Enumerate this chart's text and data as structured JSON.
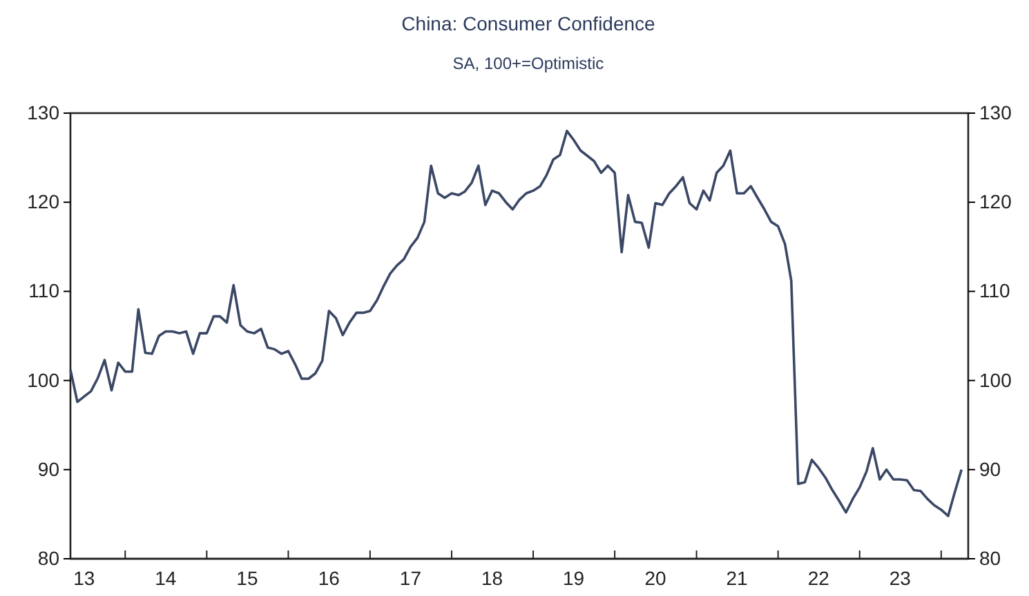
{
  "chart_data": {
    "type": "line",
    "title": "China: Consumer Confidence",
    "subtitle": "SA, 100+=Optimistic",
    "x": [
      "2013-05",
      "2013-06",
      "2013-07",
      "2013-08",
      "2013-09",
      "2013-10",
      "2013-11",
      "2013-12",
      "2014-01",
      "2014-02",
      "2014-03",
      "2014-04",
      "2014-05",
      "2014-06",
      "2014-07",
      "2014-08",
      "2014-09",
      "2014-10",
      "2014-11",
      "2014-12",
      "2015-01",
      "2015-02",
      "2015-03",
      "2015-04",
      "2015-05",
      "2015-06",
      "2015-07",
      "2015-08",
      "2015-09",
      "2015-10",
      "2015-11",
      "2015-12",
      "2016-01",
      "2016-02",
      "2016-03",
      "2016-04",
      "2016-05",
      "2016-06",
      "2016-07",
      "2016-08",
      "2016-09",
      "2016-10",
      "2016-11",
      "2016-12",
      "2017-01",
      "2017-02",
      "2017-03",
      "2017-04",
      "2017-05",
      "2017-06",
      "2017-07",
      "2017-08",
      "2017-09",
      "2017-10",
      "2017-11",
      "2017-12",
      "2018-01",
      "2018-02",
      "2018-03",
      "2018-04",
      "2018-05",
      "2018-06",
      "2018-07",
      "2018-08",
      "2018-09",
      "2018-10",
      "2018-11",
      "2018-12",
      "2019-01",
      "2019-02",
      "2019-03",
      "2019-04",
      "2019-05",
      "2019-06",
      "2019-07",
      "2019-08",
      "2019-09",
      "2019-10",
      "2019-11",
      "2019-12",
      "2020-01",
      "2020-02",
      "2020-03",
      "2020-04",
      "2020-05",
      "2020-06",
      "2020-07",
      "2020-08",
      "2020-09",
      "2020-10",
      "2020-11",
      "2020-12",
      "2021-01",
      "2021-02",
      "2021-03",
      "2021-04",
      "2021-05",
      "2021-06",
      "2021-07",
      "2021-08",
      "2021-09",
      "2021-10",
      "2021-11",
      "2021-12",
      "2022-01",
      "2022-02",
      "2022-03",
      "2022-04",
      "2022-05",
      "2022-06",
      "2022-07",
      "2022-08",
      "2022-09",
      "2022-10",
      "2022-11",
      "2022-12",
      "2023-01",
      "2023-02",
      "2023-03",
      "2023-04",
      "2023-05",
      "2023-06",
      "2023-07",
      "2023-08",
      "2023-09",
      "2023-10",
      "2023-11",
      "2023-12",
      "2024-01",
      "2024-02",
      "2024-03",
      "2024-04"
    ],
    "series": [
      {
        "color": "#3a4866",
        "values": [
          101.2,
          97.6,
          98.2,
          98.8,
          100.3,
          102.3,
          98.9,
          102,
          101,
          101,
          108,
          103.1,
          103,
          105,
          105.5,
          105.5,
          105.3,
          105.5,
          103,
          105.3,
          105.3,
          107.2,
          107.2,
          106.5,
          110.7,
          106.2,
          105.5,
          105.3,
          105.8,
          103.7,
          103.5,
          103,
          103.3,
          101.8,
          100.2,
          100.2,
          100.8,
          102.2,
          107.8,
          107,
          105.1,
          106.5,
          107.6,
          107.6,
          107.8,
          109,
          110.5,
          112,
          112.9,
          113.6,
          115,
          116,
          117.8,
          124.1,
          121,
          120.5,
          121,
          120.8,
          121.2,
          122.2,
          124.1,
          119.7,
          121.3,
          121,
          120,
          119.2,
          120.3,
          121,
          121.3,
          121.8,
          123,
          124.8,
          125.3,
          128,
          127,
          125.8,
          125.2,
          124.6,
          123.3,
          124.1,
          123.3,
          114.4,
          120.8,
          117.8,
          117.7,
          114.9,
          119.9,
          119.7,
          121,
          121.8,
          122.8,
          119.9,
          119.2,
          121.3,
          120.2,
          123.3,
          124.1,
          125.8,
          121,
          121,
          121.8,
          120.5,
          119.2,
          117.8,
          117.3,
          115.3,
          111.2,
          88.4,
          88.6,
          91.1,
          90.2,
          89.1,
          87.7,
          86.5,
          85.2,
          86.7,
          88,
          89.8,
          92.4,
          88.9,
          90,
          88.9,
          88.9,
          88.8,
          87.7,
          87.6,
          86.7,
          86,
          85.5,
          84.8,
          87.4,
          90
        ]
      }
    ],
    "xlim": [
      "2013-05",
      "2024-05"
    ],
    "xticks": [
      {
        "value": "2013-07",
        "label": "13"
      },
      {
        "value": "2014-01",
        "label": null
      },
      {
        "value": "2014-07",
        "label": "14"
      },
      {
        "value": "2015-01",
        "label": null
      },
      {
        "value": "2015-07",
        "label": "15"
      },
      {
        "value": "2016-01",
        "label": null
      },
      {
        "value": "2016-07",
        "label": "16"
      },
      {
        "value": "2017-01",
        "label": null
      },
      {
        "value": "2017-07",
        "label": "17"
      },
      {
        "value": "2018-01",
        "label": null
      },
      {
        "value": "2018-07",
        "label": "18"
      },
      {
        "value": "2019-01",
        "label": null
      },
      {
        "value": "2019-07",
        "label": "19"
      },
      {
        "value": "2020-01",
        "label": null
      },
      {
        "value": "2020-07",
        "label": "20"
      },
      {
        "value": "2021-01",
        "label": null
      },
      {
        "value": "2021-07",
        "label": "21"
      },
      {
        "value": "2022-01",
        "label": null
      },
      {
        "value": "2022-07",
        "label": "22"
      },
      {
        "value": "2023-01",
        "label": null
      },
      {
        "value": "2023-07",
        "label": "23"
      },
      {
        "value": "2024-01",
        "label": null
      }
    ],
    "ylim": [
      80,
      130
    ],
    "yticks": [
      80,
      90,
      100,
      110,
      120,
      130
    ],
    "y2lim": [
      80,
      130
    ],
    "y2ticks": [
      80,
      90,
      100,
      110,
      120,
      130
    ],
    "marker": "none",
    "line_style": "solid"
  }
}
